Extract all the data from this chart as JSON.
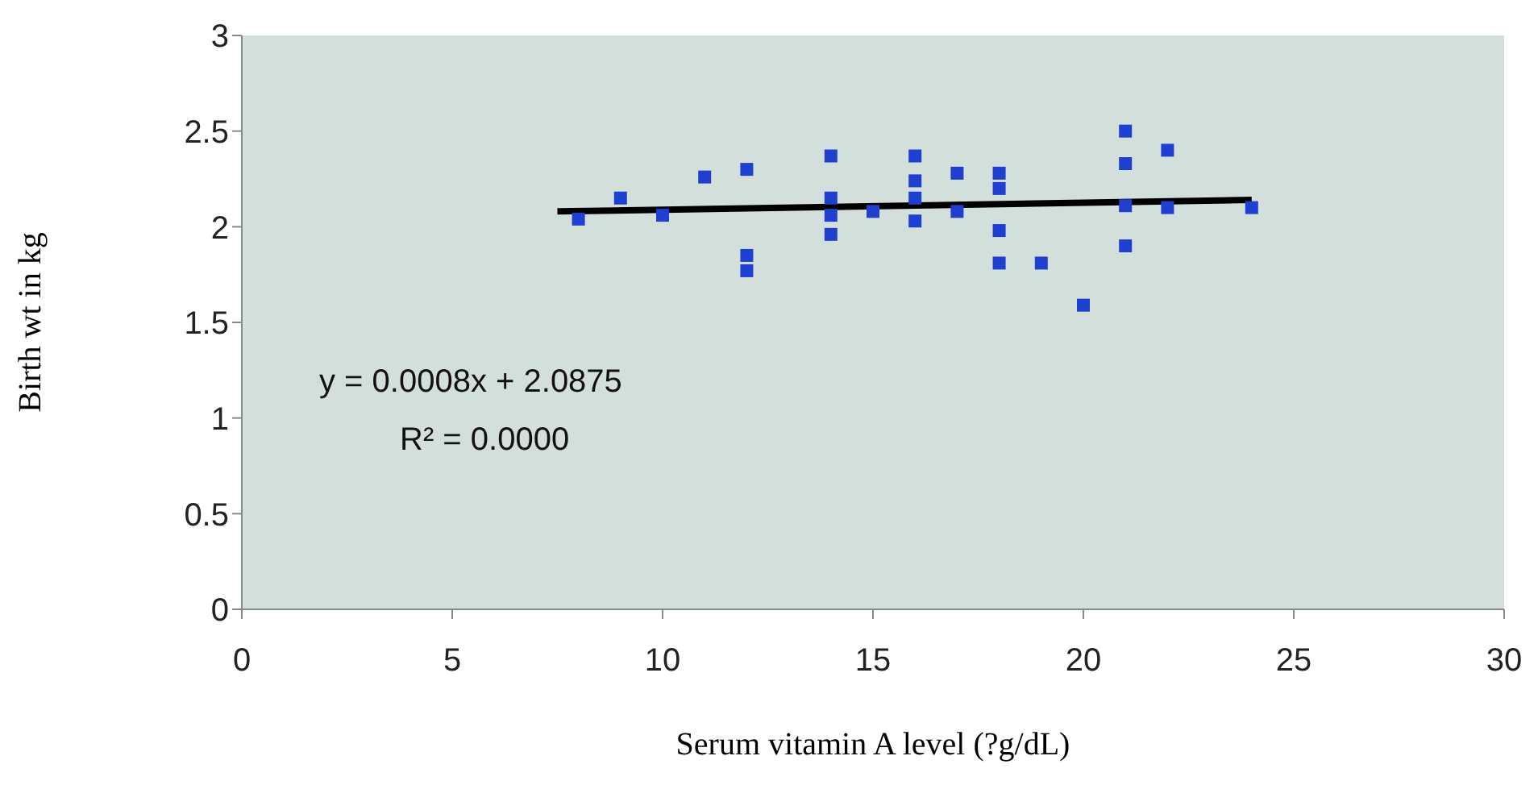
{
  "chart_data": {
    "type": "scatter",
    "xlabel": "Serum vitamin A level (?g/dL)",
    "ylabel": "Birth wt in kg",
    "xlim": [
      0,
      30
    ],
    "xticks": [
      0,
      5,
      10,
      15,
      20,
      25,
      30
    ],
    "ylim": [
      0,
      3
    ],
    "yticks": [
      0,
      0.5,
      1,
      1.5,
      2,
      2.5,
      3
    ],
    "marker": "square",
    "series": [
      {
        "color": "#1f3fd0",
        "x": [
          8,
          9,
          10,
          11,
          12,
          12,
          12,
          14,
          14,
          14,
          14,
          15,
          16,
          16,
          16,
          16,
          17,
          17,
          18,
          18,
          18,
          18,
          19,
          20,
          21,
          21,
          21,
          21,
          22,
          22,
          24
        ],
        "values": [
          2.04,
          2.15,
          2.06,
          2.26,
          2.3,
          1.85,
          1.77,
          2.37,
          2.15,
          2.06,
          1.96,
          2.08,
          2.37,
          2.24,
          2.15,
          2.03,
          2.28,
          2.08,
          2.28,
          2.2,
          1.98,
          1.81,
          1.81,
          1.59,
          2.5,
          2.33,
          2.11,
          1.9,
          2.4,
          2.1,
          2.1
        ]
      },
      {
        "type": "line",
        "marker": "none",
        "color": "#000000",
        "x": [
          7.5,
          24
        ],
        "values": [
          2.08,
          2.14
        ]
      }
    ],
    "annotations": [
      "y = 0.0008x + 2.0875",
      "R² = 0.0000"
    ]
  }
}
